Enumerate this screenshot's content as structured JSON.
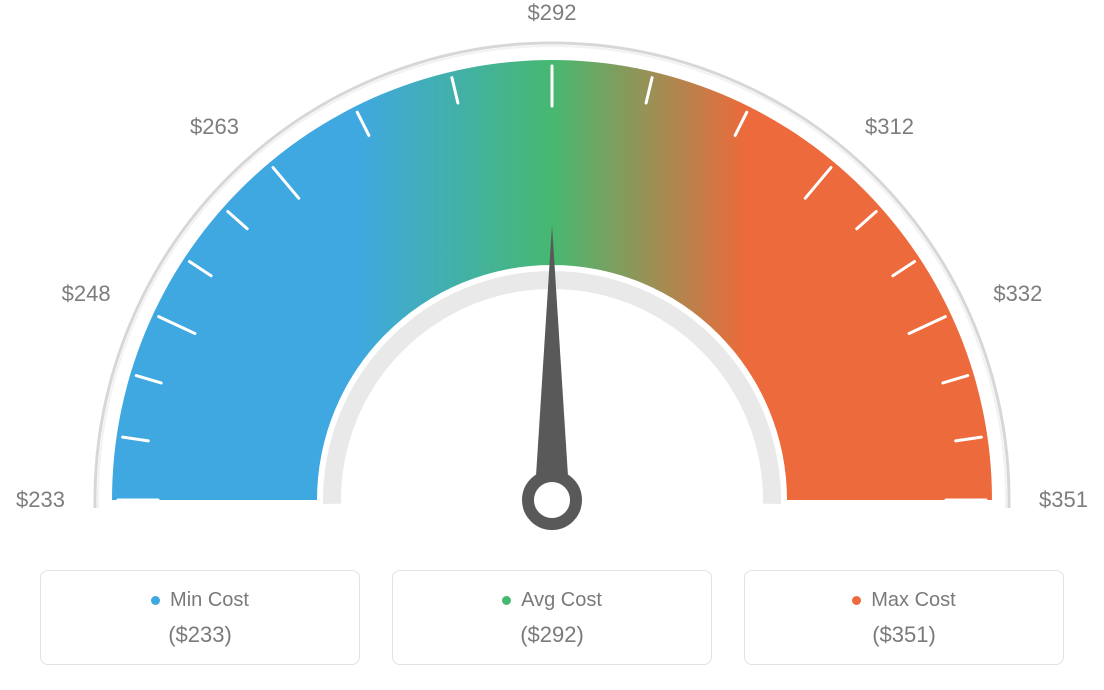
{
  "gauge": {
    "type": "gauge",
    "min": 233,
    "max": 351,
    "value": 292,
    "tick_labels": [
      "$233",
      "$248",
      "$263",
      "$292",
      "$312",
      "$332",
      "$351"
    ],
    "tick_label_angles_deg": [
      180,
      155,
      130,
      90,
      50,
      25,
      0
    ],
    "minor_tick_count_between_major": 2,
    "outer_radius": 440,
    "inner_radius": 235,
    "colors": {
      "min": "#3fa8e0",
      "avg": "#46b871",
      "max": "#ec6a3b",
      "scale_arc": "#d7d7d7",
      "inner_ring": "#e9e9e9",
      "tick": "#ffffff",
      "needle": "#595959",
      "label_text": "#7d7d7d"
    },
    "label_fontsize": 22,
    "background_color": "#ffffff",
    "arc_stroke_width": 3,
    "major_tick_length": 40,
    "minor_tick_length": 26,
    "tick_stroke_width": 3
  },
  "cards": {
    "min": {
      "label": "Min Cost",
      "value": "($233)",
      "dot_color": "#3fa8e0"
    },
    "avg": {
      "label": "Avg Cost",
      "value": "($292)",
      "dot_color": "#46b871"
    },
    "max": {
      "label": "Max Cost",
      "value": "($351)",
      "dot_color": "#ec6a3b"
    }
  }
}
